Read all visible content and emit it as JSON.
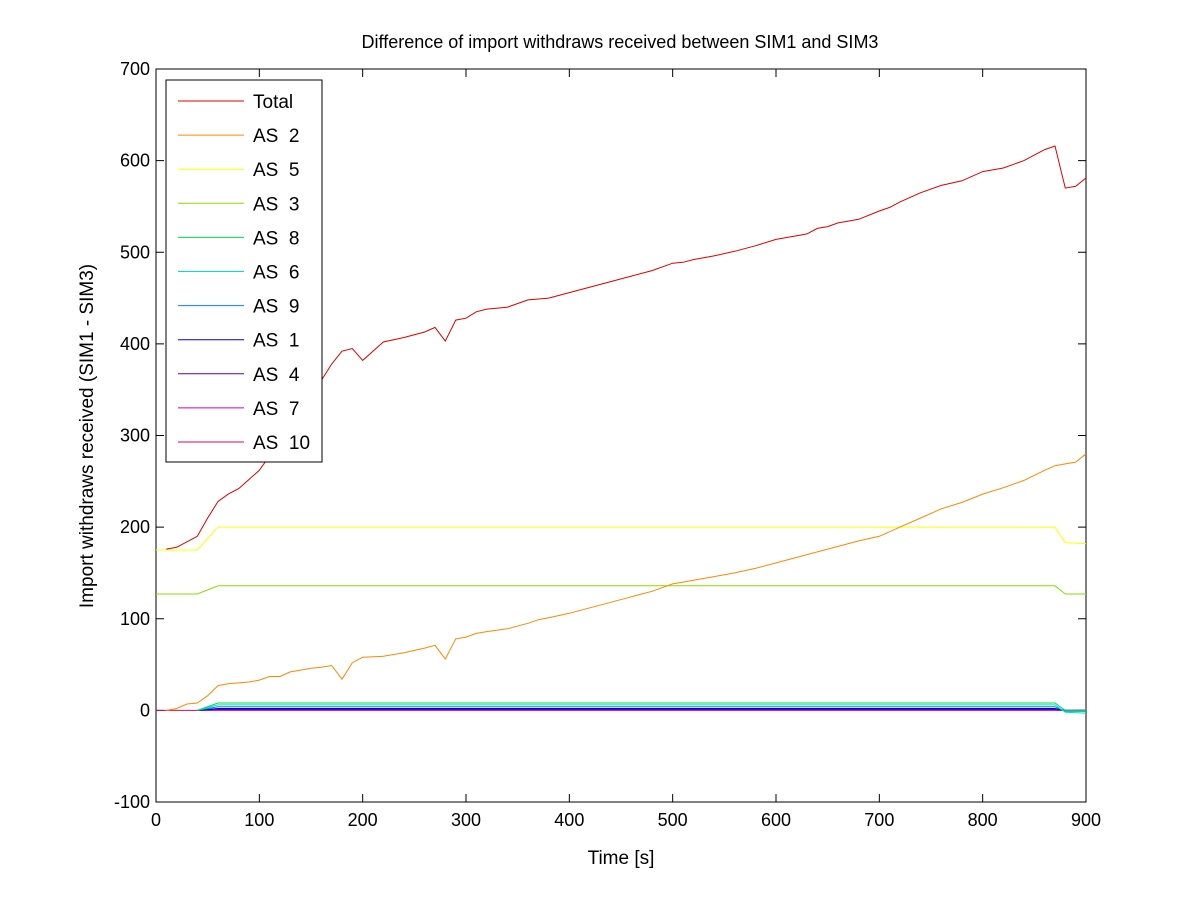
{
  "chart_data": {
    "type": "line",
    "title": "Difference of import withdraws received between SIM1 and SIM3",
    "xlabel": "Time [s]",
    "ylabel": "Import withdraws received (SIM1 - SIM3)",
    "xlim": [
      0,
      900
    ],
    "ylim": [
      -100,
      700
    ],
    "xticks": [
      0,
      100,
      200,
      300,
      400,
      500,
      600,
      700,
      800,
      900
    ],
    "yticks": [
      -100,
      0,
      100,
      200,
      300,
      400,
      500,
      600,
      700
    ],
    "grid": false,
    "legend": "top-left",
    "series": [
      {
        "name": "Total",
        "color": "#dd0000",
        "x": [
          10,
          20,
          30,
          40,
          50,
          60,
          70,
          80,
          90,
          100,
          110,
          120,
          130,
          140,
          150,
          160,
          170,
          180,
          190,
          200,
          220,
          240,
          260,
          270,
          280,
          290,
          300,
          310,
          320,
          340,
          360,
          370,
          380,
          400,
          420,
          440,
          460,
          480,
          500,
          510,
          520,
          540,
          560,
          580,
          600,
          620,
          630,
          640,
          650,
          660,
          670,
          680,
          700,
          710,
          720,
          740,
          760,
          780,
          800,
          820,
          840,
          850,
          860,
          870,
          880,
          890,
          900
        ],
        "y": [
          176,
          178,
          184,
          190,
          210,
          228,
          236,
          242,
          252,
          262,
          278,
          290,
          305,
          320,
          340,
          360,
          378,
          392,
          395,
          382,
          402,
          407,
          413,
          418,
          403,
          426,
          428,
          435,
          438,
          440,
          448,
          449,
          450,
          456,
          462,
          468,
          474,
          480,
          488,
          489,
          492,
          496,
          501,
          507,
          514,
          518,
          520,
          526,
          528,
          532,
          534,
          536,
          545,
          549,
          555,
          565,
          573,
          578,
          588,
          592,
          600,
          606,
          612,
          616,
          570,
          572,
          581
        ]
      },
      {
        "name": "AS  2",
        "color": "#ff8800",
        "x": [
          10,
          20,
          30,
          40,
          50,
          60,
          70,
          80,
          90,
          100,
          110,
          120,
          130,
          140,
          150,
          160,
          170,
          180,
          190,
          200,
          220,
          240,
          260,
          270,
          280,
          290,
          300,
          310,
          320,
          340,
          360,
          370,
          380,
          400,
          420,
          440,
          460,
          480,
          500,
          510,
          520,
          540,
          560,
          580,
          600,
          620,
          640,
          660,
          680,
          700,
          720,
          740,
          760,
          780,
          800,
          820,
          840,
          860,
          870,
          880,
          890,
          900
        ],
        "y": [
          0,
          2,
          7,
          8,
          16,
          27,
          29,
          30,
          31,
          33,
          37,
          37,
          42,
          44,
          46,
          47,
          49,
          34,
          52,
          58,
          59,
          63,
          68,
          71,
          56,
          78,
          80,
          84,
          86,
          89,
          95,
          99,
          101,
          106,
          112,
          118,
          124,
          130,
          138,
          140,
          142,
          146,
          150,
          155,
          161,
          167,
          173,
          179,
          185,
          190,
          200,
          210,
          220,
          227,
          236,
          243,
          251,
          262,
          267,
          269,
          271,
          280
        ]
      },
      {
        "name": "AS  5",
        "color": "#ffff00",
        "x": [
          0,
          40,
          60,
          870,
          880,
          900
        ],
        "y": [
          175,
          175,
          200,
          200,
          183,
          182
        ]
      },
      {
        "name": "AS  3",
        "color": "#88dd00",
        "x": [
          0,
          40,
          60,
          870,
          880,
          900
        ],
        "y": [
          127,
          127,
          136,
          136,
          127,
          127
        ]
      },
      {
        "name": "AS  8",
        "color": "#00dd44",
        "x": [
          40,
          60,
          870,
          880,
          900
        ],
        "y": [
          0,
          8,
          8,
          0,
          0
        ]
      },
      {
        "name": "AS  6",
        "color": "#00dddd",
        "x": [
          40,
          60,
          870,
          880,
          900
        ],
        "y": [
          0,
          6,
          6,
          -2,
          -3
        ]
      },
      {
        "name": "AS  9",
        "color": "#0088dd",
        "x": [
          40,
          60,
          870,
          880,
          900
        ],
        "y": [
          0,
          4,
          4,
          -1,
          -1
        ]
      },
      {
        "name": "AS  1",
        "color": "#0000cc",
        "x": [
          40,
          60,
          870,
          880,
          900
        ],
        "y": [
          0,
          2,
          2,
          0,
          0
        ]
      },
      {
        "name": "AS  4",
        "color": "#5500cc",
        "x": [
          40,
          60,
          870,
          880,
          900
        ],
        "y": [
          0,
          1,
          1,
          0,
          0
        ]
      },
      {
        "name": "AS  7",
        "color": "#cc00cc",
        "x": [
          40,
          60,
          870,
          880,
          900
        ],
        "y": [
          0,
          0.5,
          0.5,
          0,
          0
        ]
      },
      {
        "name": "AS  10",
        "color": "#dd0066",
        "x": [
          0,
          900
        ],
        "y": [
          0,
          0
        ]
      }
    ]
  }
}
